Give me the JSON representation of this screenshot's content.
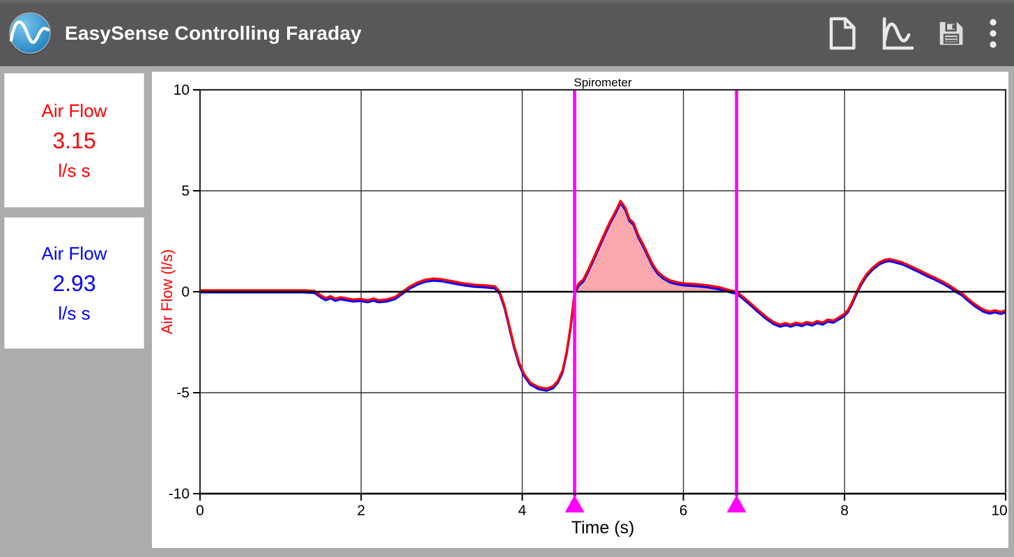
{
  "app_bar": {
    "title": "EasySense Controlling Faraday",
    "background": "#58585a",
    "logo": "easysense-wave-logo",
    "icons": [
      "new-file-icon",
      "graph-icon",
      "save-icon",
      "overflow-menu-icon"
    ]
  },
  "sidebar": {
    "readouts": [
      {
        "label": "Air Flow",
        "value": "3.15",
        "unit": "l/s s",
        "color": "#ff0000"
      },
      {
        "label": "Air Flow",
        "value": "2.93",
        "unit": "l/s s",
        "color": "#0000ff"
      }
    ]
  },
  "chart_data": {
    "type": "line",
    "title": "Spirometer",
    "xlabel": "Time (s)",
    "ylabel": "Air Flow (l/s)",
    "ylabel_color": "#ff0000",
    "xlim": [
      0,
      10
    ],
    "ylim": [
      -10,
      10
    ],
    "x_ticks": [
      0,
      2,
      4,
      6,
      8,
      10
    ],
    "y_ticks": [
      -10,
      -5,
      0,
      5,
      10
    ],
    "grid": true,
    "zero_line": true,
    "cursors": {
      "color": "#ff00ff",
      "positions": [
        4.65,
        6.66
      ]
    },
    "fill_between_cursors": {
      "color": "#faa8ab",
      "above": 0
    },
    "series": [
      {
        "name": "Air Flow (blue trace)",
        "color": "#0000ff",
        "offset": -0.1
      },
      {
        "name": "Air Flow (red trace)",
        "color": "#ff0000",
        "offset": 0
      }
    ],
    "points": [
      [
        0,
        0.07
      ],
      [
        0.4,
        0.07
      ],
      [
        0.8,
        0.07
      ],
      [
        1.1,
        0.07
      ],
      [
        1.3,
        0.07
      ],
      [
        1.42,
        0.04
      ],
      [
        1.5,
        -0.18
      ],
      [
        1.56,
        -0.32
      ],
      [
        1.62,
        -0.22
      ],
      [
        1.68,
        -0.35
      ],
      [
        1.74,
        -0.27
      ],
      [
        1.82,
        -0.33
      ],
      [
        1.9,
        -0.38
      ],
      [
        2.0,
        -0.36
      ],
      [
        2.08,
        -0.42
      ],
      [
        2.15,
        -0.34
      ],
      [
        2.22,
        -0.42
      ],
      [
        2.32,
        -0.38
      ],
      [
        2.42,
        -0.26
      ],
      [
        2.5,
        -0.04
      ],
      [
        2.6,
        0.25
      ],
      [
        2.7,
        0.46
      ],
      [
        2.8,
        0.6
      ],
      [
        2.9,
        0.65
      ],
      [
        3.0,
        0.62
      ],
      [
        3.12,
        0.53
      ],
      [
        3.25,
        0.43
      ],
      [
        3.4,
        0.35
      ],
      [
        3.55,
        0.31
      ],
      [
        3.66,
        0.27
      ],
      [
        3.72,
        0.0
      ],
      [
        3.78,
        -0.7
      ],
      [
        3.84,
        -1.7
      ],
      [
        3.9,
        -2.7
      ],
      [
        3.96,
        -3.5
      ],
      [
        4.02,
        -4.05
      ],
      [
        4.1,
        -4.5
      ],
      [
        4.2,
        -4.72
      ],
      [
        4.3,
        -4.8
      ],
      [
        4.38,
        -4.68
      ],
      [
        4.44,
        -4.42
      ],
      [
        4.5,
        -3.9
      ],
      [
        4.55,
        -3.0
      ],
      [
        4.6,
        -1.7
      ],
      [
        4.65,
        0.0
      ],
      [
        4.7,
        0.4
      ],
      [
        4.76,
        0.62
      ],
      [
        4.82,
        1.1
      ],
      [
        4.9,
        1.8
      ],
      [
        5.0,
        2.7
      ],
      [
        5.08,
        3.4
      ],
      [
        5.16,
        4.0
      ],
      [
        5.22,
        4.5
      ],
      [
        5.28,
        4.15
      ],
      [
        5.33,
        3.6
      ],
      [
        5.38,
        3.42
      ],
      [
        5.44,
        2.8
      ],
      [
        5.5,
        2.35
      ],
      [
        5.56,
        1.85
      ],
      [
        5.62,
        1.35
      ],
      [
        5.68,
        1.0
      ],
      [
        5.75,
        0.75
      ],
      [
        5.83,
        0.57
      ],
      [
        5.92,
        0.47
      ],
      [
        6.0,
        0.42
      ],
      [
        6.15,
        0.38
      ],
      [
        6.3,
        0.32
      ],
      [
        6.45,
        0.22
      ],
      [
        6.57,
        0.08
      ],
      [
        6.66,
        0.0
      ],
      [
        6.74,
        -0.25
      ],
      [
        6.82,
        -0.52
      ],
      [
        6.92,
        -0.88
      ],
      [
        7.02,
        -1.22
      ],
      [
        7.12,
        -1.5
      ],
      [
        7.2,
        -1.63
      ],
      [
        7.27,
        -1.55
      ],
      [
        7.33,
        -1.63
      ],
      [
        7.4,
        -1.53
      ],
      [
        7.47,
        -1.6
      ],
      [
        7.53,
        -1.5
      ],
      [
        7.6,
        -1.57
      ],
      [
        7.66,
        -1.45
      ],
      [
        7.73,
        -1.53
      ],
      [
        7.79,
        -1.38
      ],
      [
        7.86,
        -1.43
      ],
      [
        7.93,
        -1.27
      ],
      [
        7.99,
        -1.12
      ],
      [
        8.04,
        -0.92
      ],
      [
        8.09,
        -0.55
      ],
      [
        8.14,
        -0.1
      ],
      [
        8.2,
        0.4
      ],
      [
        8.27,
        0.85
      ],
      [
        8.35,
        1.2
      ],
      [
        8.43,
        1.45
      ],
      [
        8.5,
        1.58
      ],
      [
        8.56,
        1.62
      ],
      [
        8.63,
        1.55
      ],
      [
        8.72,
        1.45
      ],
      [
        8.82,
        1.27
      ],
      [
        8.92,
        1.08
      ],
      [
        9.02,
        0.88
      ],
      [
        9.12,
        0.7
      ],
      [
        9.22,
        0.5
      ],
      [
        9.32,
        0.27
      ],
      [
        9.4,
        0.05
      ],
      [
        9.46,
        -0.08
      ],
      [
        9.52,
        -0.3
      ],
      [
        9.62,
        -0.62
      ],
      [
        9.72,
        -0.88
      ],
      [
        9.8,
        -0.98
      ],
      [
        9.87,
        -0.92
      ],
      [
        9.94,
        -1.0
      ],
      [
        10.0,
        -0.92
      ]
    ]
  }
}
